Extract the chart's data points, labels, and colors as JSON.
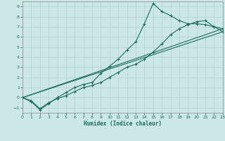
{
  "xlabel": "Humidex (Indice chaleur)",
  "bg_color": "#cce8e6",
  "grid_color": "#b8d4d2",
  "line_color": "#1a6b5a",
  "x_min": 0,
  "x_max": 23,
  "y_min": -1.5,
  "y_max": 9.5,
  "yticks": [
    -1,
    0,
    1,
    2,
    3,
    4,
    5,
    6,
    7,
    8,
    9
  ],
  "xticks": [
    0,
    1,
    2,
    3,
    4,
    5,
    6,
    7,
    8,
    9,
    10,
    11,
    12,
    13,
    14,
    15,
    16,
    17,
    18,
    19,
    20,
    21,
    22,
    23
  ],
  "curve_x": [
    0,
    1,
    2,
    3,
    4,
    5,
    6,
    7,
    8,
    9,
    10,
    11,
    12,
    13,
    14,
    15,
    16,
    17,
    18,
    19,
    20,
    21,
    22,
    23
  ],
  "curve1_y": [
    0.0,
    -0.3,
    -1.1,
    -0.5,
    -0.1,
    0.2,
    0.6,
    1.0,
    1.2,
    1.5,
    2.0,
    2.5,
    3.0,
    3.3,
    3.8,
    4.5,
    5.3,
    6.2,
    6.8,
    7.2,
    7.5,
    7.6,
    7.0,
    6.5
  ],
  "curve2_y": [
    0.0,
    -0.4,
    -1.2,
    -0.6,
    0.0,
    0.5,
    1.0,
    1.3,
    1.5,
    2.4,
    3.1,
    3.8,
    4.7,
    5.5,
    7.3,
    9.3,
    8.5,
    8.1,
    7.6,
    7.3,
    7.3,
    7.2,
    7.0,
    6.8
  ],
  "line3_x": [
    0,
    23
  ],
  "line3_y": [
    0.0,
    6.5
  ],
  "line4_x": [
    0,
    23
  ],
  "line4_y": [
    0.0,
    6.8
  ]
}
